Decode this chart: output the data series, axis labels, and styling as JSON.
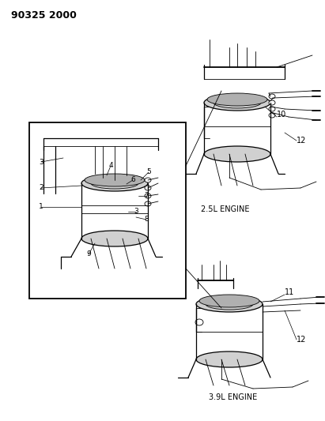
{
  "title": "90325 2000",
  "label_25": "2.5L ENGINE",
  "label_39": "3.9L ENGINE",
  "bg": "#ffffff",
  "fg": "#000000",
  "gray1": "#b0b0b0",
  "gray2": "#888888",
  "gray3": "#d0d0d0"
}
